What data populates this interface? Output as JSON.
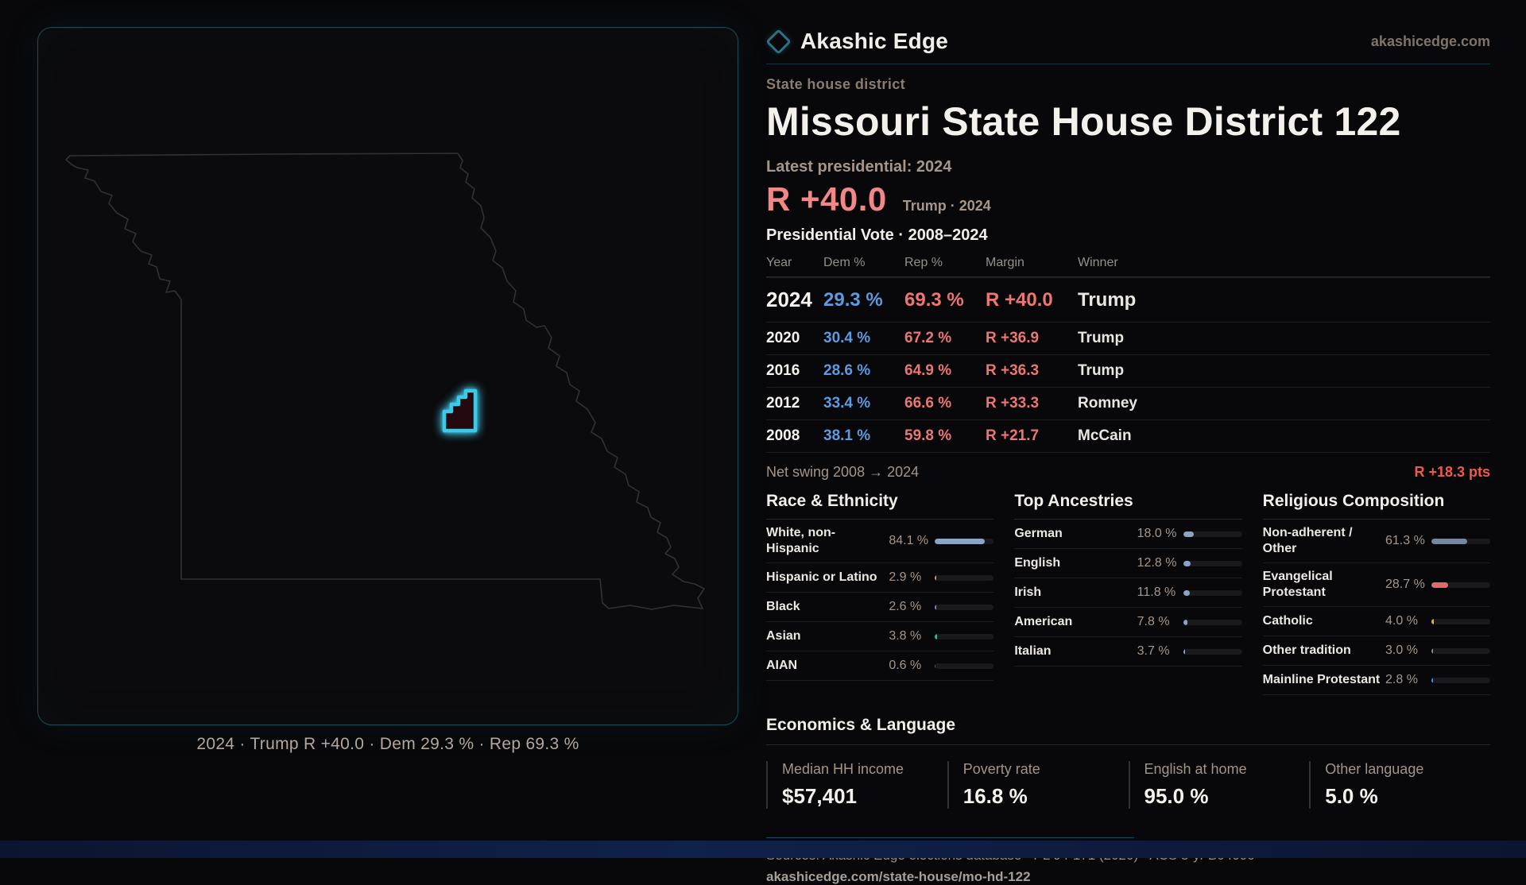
{
  "brand": {
    "name": "Akashic Edge",
    "domain": "akashicedge.com"
  },
  "page": {
    "eyebrow": "State house district",
    "title": "Missouri State House District 122"
  },
  "map": {
    "caption": "2024 · Trump R +40.0 · Dem 29.3 % · Rep 69.3 %"
  },
  "election": {
    "latest_label": "Latest presidential: 2024",
    "headline_margin": "R +40.0",
    "headline_note": "Trump · 2024",
    "table_title": "Presidential Vote · 2008–2024",
    "columns": {
      "year": "Year",
      "dem": "Dem %",
      "rep": "Rep %",
      "margin": "Margin",
      "winner": "Winner"
    },
    "rows": [
      {
        "year": "2024",
        "dem": "29.3 %",
        "rep": "69.3 %",
        "margin": "R +40.0",
        "winner": "Trump"
      },
      {
        "year": "2020",
        "dem": "30.4 %",
        "rep": "67.2 %",
        "margin": "R +36.9",
        "winner": "Trump"
      },
      {
        "year": "2016",
        "dem": "28.6 %",
        "rep": "64.9 %",
        "margin": "R +36.3",
        "winner": "Trump"
      },
      {
        "year": "2012",
        "dem": "33.4 %",
        "rep": "66.6 %",
        "margin": "R +33.3",
        "winner": "Romney"
      },
      {
        "year": "2008",
        "dem": "38.1 %",
        "rep": "59.8 %",
        "margin": "R +21.7",
        "winner": "McCain"
      }
    ],
    "net_swing_label": "Net swing 2008 → 2024",
    "net_swing_value": "R +18.3 pts"
  },
  "demographics": {
    "race": {
      "title": "Race & Ethnicity",
      "rows": [
        {
          "label": "White, non-Hispanic",
          "value": "84.1 %",
          "pct": 84.1,
          "color": "#8ca3c6"
        },
        {
          "label": "Hispanic or Latino",
          "value": "2.9 %",
          "pct": 2.9,
          "color": "#dd9a3c"
        },
        {
          "label": "Black",
          "value": "2.6 %",
          "pct": 2.6,
          "color": "#8d7ce0"
        },
        {
          "label": "Asian",
          "value": "3.8 %",
          "pct": 3.8,
          "color": "#2fbd82"
        },
        {
          "label": "AIAN",
          "value": "0.6 %",
          "pct": 0.6,
          "color": "#55555c"
        }
      ]
    },
    "ancestries": {
      "title": "Top Ancestries",
      "rows": [
        {
          "label": "German",
          "value": "18.0 %",
          "pct": 18.0,
          "color": "#8ca3c6"
        },
        {
          "label": "English",
          "value": "12.8 %",
          "pct": 12.8,
          "color": "#8ca3c6"
        },
        {
          "label": "Irish",
          "value": "11.8 %",
          "pct": 11.8,
          "color": "#8ca3c6"
        },
        {
          "label": "American",
          "value": "7.8 %",
          "pct": 7.8,
          "color": "#8ca3c6"
        },
        {
          "label": "Italian",
          "value": "3.7 %",
          "pct": 3.7,
          "color": "#8ca3c6"
        }
      ]
    },
    "religion": {
      "title": "Religious Composition",
      "rows": [
        {
          "label": "Non-adherent / Other",
          "value": "61.3 %",
          "pct": 61.3,
          "color": "#76879f"
        },
        {
          "label": "Evangelical Protestant",
          "value": "28.7 %",
          "pct": 28.7,
          "color": "#e06a6a"
        },
        {
          "label": "Catholic",
          "value": "4.0 %",
          "pct": 4.0,
          "color": "#e3b53c"
        },
        {
          "label": "Other tradition",
          "value": "3.0 %",
          "pct": 3.0,
          "color": "#8f8f97"
        },
        {
          "label": "Mainline Protestant",
          "value": "2.8 %",
          "pct": 2.8,
          "color": "#4d8ce8"
        }
      ]
    }
  },
  "economics": {
    "title": "Economics & Language",
    "stats": [
      {
        "label": "Median HH income",
        "value": "$57,401"
      },
      {
        "label": "Poverty rate",
        "value": "16.8 %"
      },
      {
        "label": "English at home",
        "value": "95.0 %"
      },
      {
        "label": "Other language",
        "value": "5.0 %"
      }
    ]
  },
  "footer": {
    "sources": "Sources: Akashic Edge elections database · PL 94-171 (2020) · ACS 5-yr B04006",
    "permalink": "akashicedge.com/state-house/mo-hd-122"
  },
  "colors": {
    "accent_cyan": "#3fc8e8",
    "rep_red": "#ed7672",
    "dem_blue": "#5d9be0",
    "swing_red": "#ef5a4a"
  }
}
